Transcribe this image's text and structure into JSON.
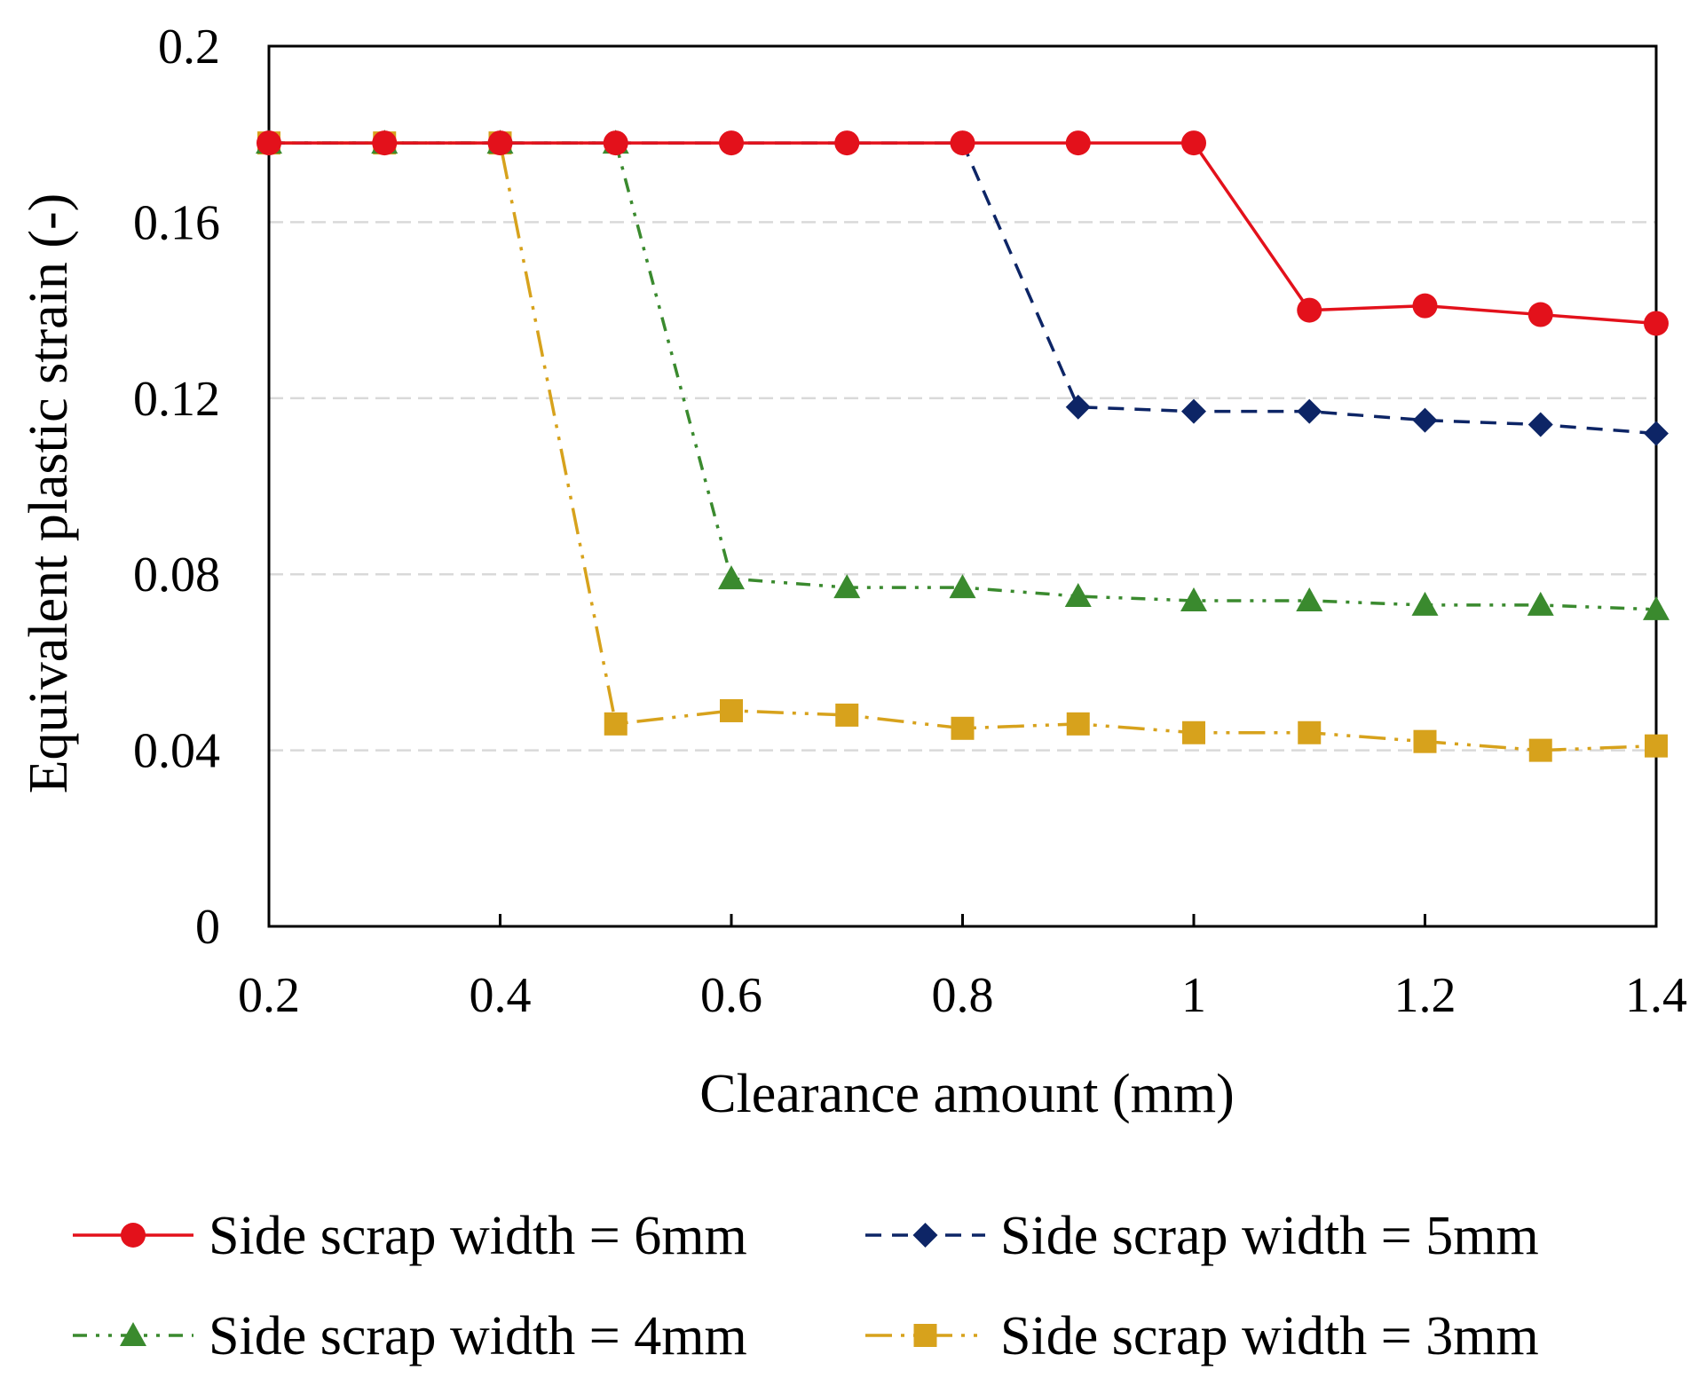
{
  "chart_data": {
    "type": "line",
    "title": "",
    "xlabel": "Clearance amount (mm)",
    "ylabel": "Equivalent plastic strain (-)",
    "xlim": [
      0.2,
      1.4
    ],
    "ylim": [
      0,
      0.2
    ],
    "x_ticks": [
      "0.2",
      "0.4",
      "0.6",
      "0.8",
      "1",
      "1.2",
      "1.4"
    ],
    "y_ticks": [
      "0",
      "0.04",
      "0.08",
      "0.12",
      "0.16",
      "0.2"
    ],
    "grid": "horizontal dashed",
    "legend_position": "bottom",
    "x": [
      0.2,
      0.3,
      0.4,
      0.5,
      0.6,
      0.7,
      0.8,
      0.9,
      1.0,
      1.1,
      1.2,
      1.3,
      1.4
    ],
    "series": [
      {
        "name": "Side scrap width = 6mm",
        "color": "#e3111b",
        "marker": "circle",
        "line_style": "solid",
        "values": [
          0.178,
          0.178,
          0.178,
          0.178,
          0.178,
          0.178,
          0.178,
          0.178,
          0.178,
          0.14,
          0.141,
          0.139,
          0.137
        ]
      },
      {
        "name": "Side scrap width = 5mm",
        "color": "#0d2566",
        "marker": "diamond",
        "line_style": "dashed",
        "values": [
          0.178,
          0.178,
          0.178,
          0.178,
          0.178,
          0.178,
          0.178,
          0.118,
          0.117,
          0.117,
          0.115,
          0.114,
          0.112
        ]
      },
      {
        "name": "Side scrap width = 4mm",
        "color": "#3a8a2e",
        "marker": "triangle",
        "line_style": "dash-dot-dot",
        "values": [
          0.178,
          0.178,
          0.178,
          0.178,
          0.079,
          0.077,
          0.077,
          0.075,
          0.074,
          0.074,
          0.073,
          0.073,
          0.072
        ]
      },
      {
        "name": "Side scrap width = 3mm",
        "color": "#d7a21c",
        "marker": "square",
        "line_style": "long-dash-dot-dot",
        "values": [
          0.178,
          0.178,
          0.178,
          0.046,
          0.049,
          0.048,
          0.045,
          0.046,
          0.044,
          0.044,
          0.042,
          0.04,
          0.041
        ]
      }
    ]
  }
}
